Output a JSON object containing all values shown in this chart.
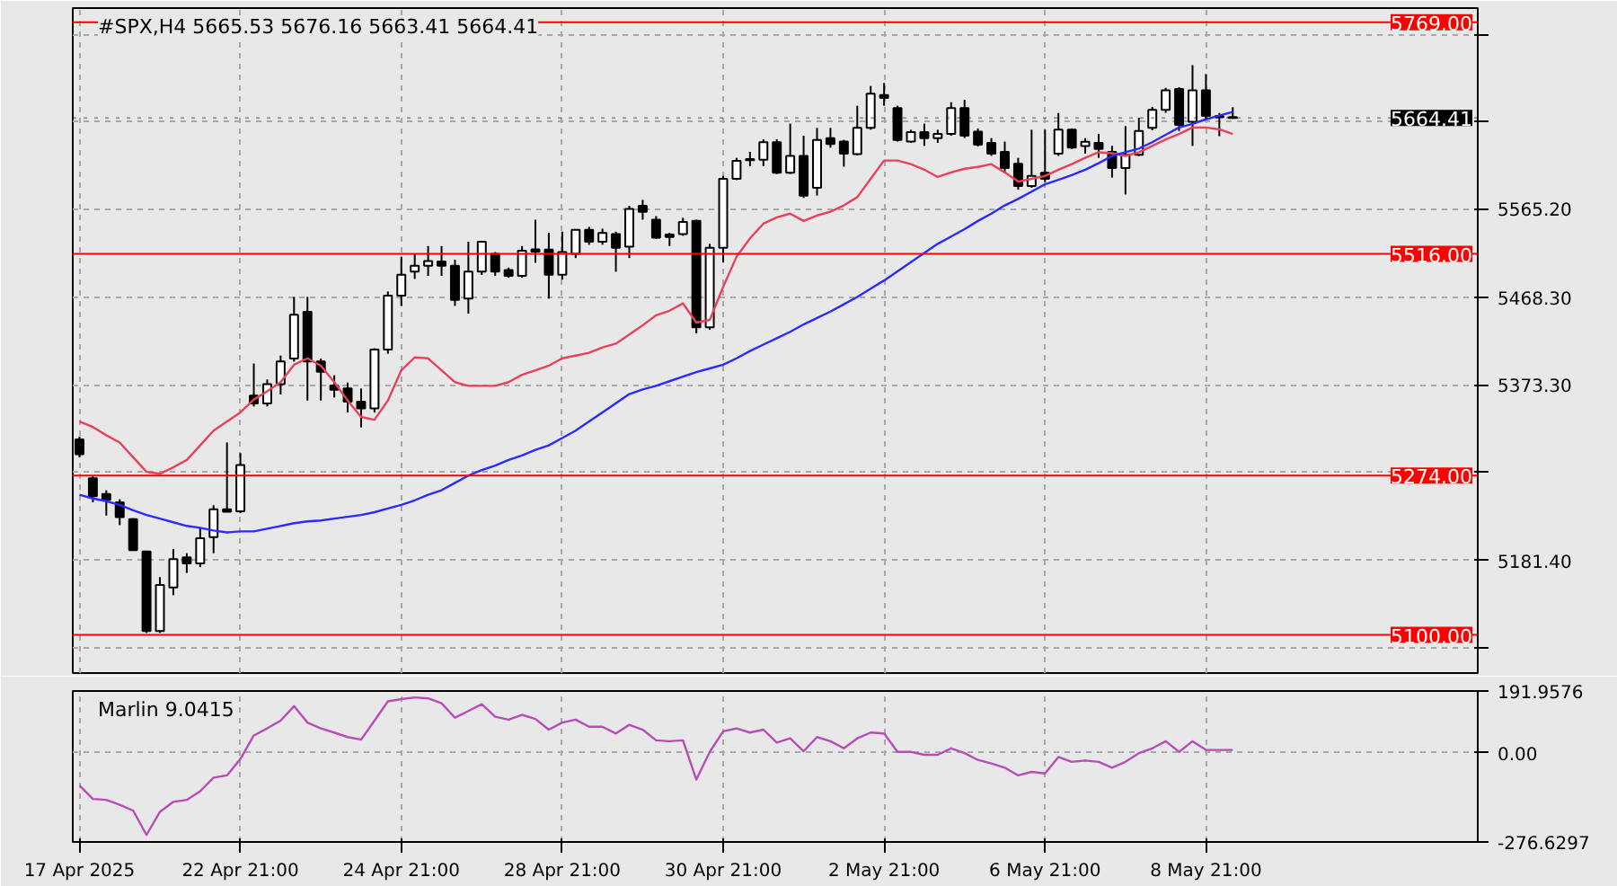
{
  "chart_data": [
    {
      "type": "candlestick",
      "title": "#SPX,H4 5665.53 5676.16 5663.41 5664.41",
      "categories": [
        null,
        null,
        null,
        null,
        null,
        null,
        null,
        null,
        null,
        null,
        null,
        null,
        null,
        null,
        null,
        null,
        null,
        null,
        null,
        null,
        null,
        null,
        null,
        null,
        null,
        null,
        null,
        null,
        null,
        null,
        null,
        null,
        null,
        null,
        null,
        null,
        null,
        null,
        null,
        null,
        null,
        null,
        null,
        null,
        null,
        null,
        null,
        null,
        null,
        null,
        null,
        null,
        null,
        null,
        null,
        null,
        null,
        null,
        null,
        null,
        null,
        null,
        null,
        null,
        null,
        null,
        null,
        null,
        null,
        null,
        null,
        null,
        null,
        null,
        null,
        null,
        null,
        null,
        null,
        null,
        null,
        null,
        null,
        null,
        null,
        null,
        null
      ],
      "ohlc": [
        [
          5313.5,
          5316.6,
          5294.0,
          5297.2
        ],
        [
          5271.0,
          5274.3,
          5244.9,
          5251.4
        ],
        [
          5253.9,
          5257.9,
          5230.4,
          5247.4
        ],
        [
          5244.9,
          5248.1,
          5219.9,
          5228.5
        ],
        [
          5226.5,
          5227.5,
          5192.0,
          5192.5
        ],
        [
          5191.2,
          5192.0,
          5102.2,
          5104.2
        ],
        [
          5104.2,
          5163.1,
          5102.2,
          5154.6
        ],
        [
          5151.9,
          5193.8,
          5143.4,
          5182.7
        ],
        [
          5184.6,
          5189.2,
          5167.7,
          5178.1
        ],
        [
          5178.1,
          5217.4,
          5174.1,
          5205.6
        ],
        [
          5206.9,
          5241.6,
          5189.2,
          5237.1
        ],
        [
          5237.1,
          5310.2,
          5234.0,
          5234.5
        ],
        [
          5235.1,
          5298.5,
          5233.0,
          5285.4
        ],
        [
          5361.2,
          5396.4,
          5349.5,
          5352.8
        ],
        [
          5352.8,
          5378.9,
          5349.5,
          5373.7
        ],
        [
          5373.7,
          5405.0,
          5362.5,
          5398.5
        ],
        [
          5401.7,
          5469.1,
          5398.5,
          5449.5
        ],
        [
          5452.7,
          5469.1,
          5355.9,
          5398.5
        ],
        [
          5398.5,
          5401.7,
          5355.9,
          5387.4
        ],
        [
          5372.4,
          5383.5,
          5359.2,
          5367.8
        ],
        [
          5369.1,
          5375.6,
          5342.9,
          5354.6
        ],
        [
          5354.6,
          5369.1,
          5326.6,
          5347.4
        ],
        [
          5347.4,
          5413.0,
          5342.9,
          5411.6
        ],
        [
          5411.6,
          5475.0,
          5407.0,
          5470.4
        ],
        [
          5470.4,
          5513.0,
          5459.3,
          5493.3
        ],
        [
          5496.6,
          5516.0,
          5488.7,
          5503.1
        ],
        [
          5503.1,
          5524.6,
          5492.0,
          5508.3
        ],
        [
          5507.7,
          5524.6,
          5492.0,
          5503.1
        ],
        [
          5503.1,
          5509.6,
          5459.3,
          5465.9
        ],
        [
          5467.2,
          5529.2,
          5450.8,
          5496.6
        ],
        [
          5496.6,
          5530.0,
          5493.0,
          5529.2
        ],
        [
          5516.0,
          5518.0,
          5492.0,
          5496.6
        ],
        [
          5498.5,
          5501.0,
          5490.0,
          5492.0
        ],
        [
          5492.0,
          5524.6,
          5490.0,
          5519.4
        ],
        [
          5521.0,
          5553.4,
          5506.3,
          5518.5
        ],
        [
          5520.8,
          5539.0,
          5467.2,
          5493.3
        ],
        [
          5493.3,
          5540.3,
          5488.0,
          5518.1
        ],
        [
          5516.1,
          5543.0,
          5511.5,
          5542.3
        ],
        [
          5542.3,
          5545.5,
          5526.0,
          5529.2
        ],
        [
          5529.2,
          5543.6,
          5526.0,
          5539.0
        ],
        [
          5537.7,
          5540.3,
          5496.6,
          5522.7
        ],
        [
          5524.0,
          5568.5,
          5511.5,
          5565.2
        ],
        [
          5568.5,
          5575.0,
          5553.4,
          5561.9
        ],
        [
          5553.4,
          5557.3,
          5532.5,
          5533.8
        ],
        [
          5537.1,
          5539.0,
          5524.6,
          5534.5
        ],
        [
          5537.7,
          5555.4,
          5535.8,
          5550.8
        ],
        [
          5552.1,
          5553.4,
          5429.2,
          5435.8
        ],
        [
          5435.8,
          5527.0,
          5433.2,
          5522.7
        ],
        [
          5522.7,
          5601.3,
          5507.0,
          5598.0
        ],
        [
          5598.0,
          5620.9,
          5596.6,
          5617.6
        ],
        [
          5618.3,
          5627.4,
          5611.8,
          5619.6
        ],
        [
          5618.9,
          5641.2,
          5611.8,
          5637.9
        ],
        [
          5637.9,
          5641.2,
          5603.3,
          5604.6
        ],
        [
          5604.6,
          5658.2,
          5603.3,
          5622.9
        ],
        [
          5622.9,
          5645.1,
          5577.1,
          5579.7
        ],
        [
          5588.2,
          5653.6,
          5579.7,
          5640.5
        ],
        [
          5642.5,
          5653.6,
          5632.0,
          5635.9
        ],
        [
          5638.6,
          5640.5,
          5611.2,
          5625.5
        ],
        [
          5625.0,
          5677.8,
          5623.6,
          5653.6
        ],
        [
          5653.6,
          5699.4,
          5651.6,
          5690.9
        ],
        [
          5689.6,
          5702.7,
          5677.8,
          5686.3
        ],
        [
          5675.2,
          5677.8,
          5638.6,
          5640.5
        ],
        [
          5638.6,
          5651.6,
          5637.3,
          5649.0
        ],
        [
          5649.0,
          5658.2,
          5634.0,
          5642.5
        ],
        [
          5642.5,
          5651.6,
          5637.3,
          5647.0
        ],
        [
          5647.0,
          5681.7,
          5645.1,
          5675.2
        ],
        [
          5675.2,
          5684.3,
          5642.5,
          5645.1
        ],
        [
          5649.6,
          5653.0,
          5633.4,
          5635.3
        ],
        [
          5637.3,
          5642.5,
          5623.0,
          5625.5
        ],
        [
          5627.4,
          5638.6,
          5604.6,
          5609.8
        ],
        [
          5614.4,
          5620.9,
          5586.2,
          5590.2
        ],
        [
          5590.2,
          5651.6,
          5588.2,
          5601.3
        ],
        [
          5604.6,
          5651.6,
          5594.4,
          5598.0
        ],
        [
          5625.5,
          5669.9,
          5623.0,
          5651.6
        ],
        [
          5651.6,
          5653.0,
          5630.7,
          5632.0
        ],
        [
          5633.9,
          5642.4,
          5625.5,
          5638.5
        ],
        [
          5637.3,
          5647.0,
          5620.9,
          5630.7
        ],
        [
          5627.4,
          5634.0,
          5599.3,
          5609.8
        ],
        [
          5609.8,
          5655.6,
          5580.9,
          5624.2
        ],
        [
          5624.2,
          5664.7,
          5622.9,
          5650.3
        ],
        [
          5653.6,
          5676.5,
          5651.0,
          5673.2
        ],
        [
          5673.2,
          5697.3,
          5670.0,
          5694.7
        ],
        [
          5696.0,
          5698.0,
          5650.3,
          5656.9
        ],
        [
          5660.2,
          5722.2,
          5633.9,
          5694.7
        ],
        [
          5694.7,
          5712.4,
          5663.4,
          5666.6
        ],
        [
          5666.6,
          5669.9,
          5644.5,
          5665.3
        ],
        [
          5665.53,
          5676.16,
          5663.41,
          5664.41
        ]
      ],
      "series": [
        {
          "type": "line",
          "color": "#e8425a",
          "values": [
            5333,
            5327,
            5318,
            5310,
            5294,
            5278,
            5276,
            5283,
            5291,
            5307,
            5323,
            5333,
            5343,
            5357,
            5366,
            5376,
            5395,
            5402,
            5394,
            5376,
            5356,
            5338,
            5335,
            5356,
            5389,
            5403,
            5402,
            5389,
            5376,
            5372,
            5372,
            5372,
            5376,
            5384,
            5389,
            5394,
            5402,
            5405,
            5408,
            5414,
            5418,
            5428,
            5438,
            5449,
            5454,
            5462,
            5441,
            5444,
            5480,
            5513,
            5533,
            5549,
            5556,
            5560,
            5552,
            5558,
            5562,
            5569,
            5578,
            5598,
            5618,
            5618,
            5614,
            5608,
            5600,
            5605,
            5609,
            5611,
            5614,
            5605,
            5595,
            5598,
            5601,
            5608,
            5614,
            5621,
            5627,
            5626,
            5623,
            5627,
            5634,
            5641,
            5647,
            5654,
            5654,
            5652,
            5647
          ]
        },
        {
          "type": "line",
          "color": "#2b2bff",
          "values": [
            5253,
            5249,
            5246,
            5242,
            5236,
            5231,
            5227,
            5223,
            5219,
            5217,
            5214,
            5212,
            5213,
            5213,
            5216,
            5219,
            5222,
            5224,
            5225,
            5227,
            5229,
            5231,
            5234,
            5238,
            5242,
            5247,
            5253,
            5258,
            5266,
            5274,
            5280,
            5285,
            5291,
            5296,
            5302,
            5307,
            5315,
            5323,
            5333,
            5343,
            5353,
            5363,
            5368,
            5372,
            5377,
            5382,
            5387,
            5391,
            5395,
            5402,
            5410,
            5417,
            5424,
            5431,
            5439,
            5446,
            5453,
            5461,
            5469,
            5478,
            5487,
            5497,
            5507,
            5517,
            5527,
            5535,
            5543,
            5552,
            5560,
            5569,
            5576,
            5584,
            5592,
            5597,
            5602,
            5608,
            5615,
            5623,
            5627,
            5631,
            5638,
            5646,
            5654,
            5658,
            5663,
            5667,
            5671
          ]
        }
      ],
      "ylim": [
        5058.4,
        5784.4
      ],
      "yticks": [
        {
          "value": 5086.4,
          "label": null
        },
        {
          "value": 5181.4,
          "label": "5181.40"
        },
        {
          "value": 5277.4,
          "label": null
        },
        {
          "value": 5373.3,
          "label": "5373.30"
        },
        {
          "value": 5468.3,
          "label": "5468.30"
        },
        {
          "value": 5565.2,
          "label": "5565.20"
        },
        {
          "value": 5660.2,
          "label": null
        },
        {
          "value": 5755.2,
          "label": null
        }
      ],
      "ref_lines": [
        {
          "axis": "y",
          "value": 5769,
          "label": "5769.00",
          "color": "#ff0000"
        },
        {
          "axis": "y",
          "value": 5516,
          "label": "5516.00",
          "color": "#ff0000"
        },
        {
          "axis": "y",
          "value": 5274,
          "label": "5274.00",
          "color": "#ff0000"
        },
        {
          "axis": "y",
          "value": 5100,
          "label": "5100.00",
          "color": "#ff0000"
        },
        {
          "axis": "y",
          "value": 5664.41,
          "label": "5664.41",
          "color": "#000000",
          "line_style": "dotted"
        }
      ],
      "grid": true,
      "tick_labels": "y"
    },
    {
      "type": "line",
      "title": "Marlin 9.0415",
      "categories": [
        "17 Apr 2025",
        null,
        null,
        null,
        null,
        null,
        null,
        null,
        null,
        null,
        null,
        null,
        "22 Apr 21:00",
        null,
        null,
        null,
        null,
        null,
        null,
        null,
        null,
        null,
        null,
        null,
        "24 Apr 21:00",
        null,
        null,
        null,
        null,
        null,
        null,
        null,
        null,
        null,
        null,
        null,
        "28 Apr 21:00",
        null,
        null,
        null,
        null,
        null,
        null,
        null,
        null,
        null,
        null,
        null,
        "30 Apr 21:00",
        null,
        null,
        null,
        null,
        null,
        null,
        null,
        null,
        null,
        null,
        null,
        "2 May 21:00",
        null,
        null,
        null,
        null,
        null,
        null,
        null,
        null,
        null,
        null,
        null,
        "6 May 21:00",
        null,
        null,
        null,
        null,
        null,
        null,
        null,
        null,
        null,
        null,
        null,
        "8 May 21:00",
        null,
        null
      ],
      "series": [
        {
          "color": "#b84cb8",
          "values": [
            -101,
            -143,
            -146,
            -161,
            -179,
            -255,
            -183,
            -152,
            -146,
            -119,
            -77,
            -70,
            -19,
            54,
            76,
            100,
            145,
            94,
            76,
            63,
            49,
            41,
            100,
            160,
            167,
            172,
            169,
            154,
            109,
            130,
            151,
            112,
            103,
            118,
            105,
            72,
            94,
            103,
            81,
            81,
            60,
            87,
            72,
            39,
            36,
            39,
            -83,
            3,
            67,
            76,
            63,
            72,
            32,
            45,
            5,
            49,
            36,
            14,
            45,
            63,
            60,
            3,
            3,
            -6,
            -6,
            14,
            -1,
            -22,
            -33,
            -46,
            -70,
            -59,
            -64,
            -13,
            -28,
            -24,
            -28,
            -46,
            -28,
            -1,
            14,
            36,
            3,
            36,
            9,
            9,
            9
          ]
        }
      ],
      "ylim": [
        -276.6297,
        191.9576
      ],
      "yticks": [
        {
          "value": -276.6297,
          "label": "-276.6297"
        },
        {
          "value": 0,
          "label": "0.00"
        },
        {
          "value": 191.9576,
          "label": "191.9576"
        }
      ],
      "grid": true
    }
  ]
}
